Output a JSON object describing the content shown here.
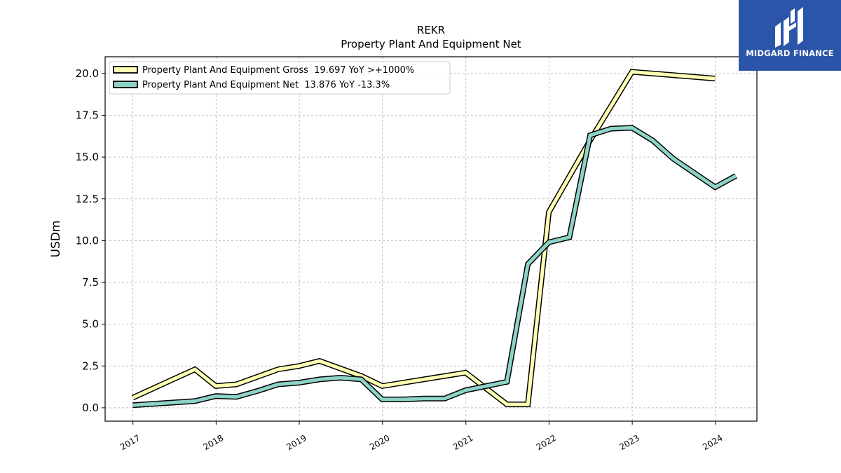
{
  "chart_data": {
    "type": "line",
    "title": "REKR",
    "subtitle": "Property Plant And Equipment Net",
    "ylabel": "USDm",
    "xlabel": "",
    "xlim": [
      "2016-09-01",
      "2024-07-01"
    ],
    "ylim": [
      -0.8,
      21.0
    ],
    "yticks": [
      0.0,
      2.5,
      5.0,
      7.5,
      10.0,
      12.5,
      15.0,
      17.5,
      20.0
    ],
    "ytick_labels": [
      "0.0",
      "2.5",
      "5.0",
      "7.5",
      "10.0",
      "12.5",
      "15.0",
      "17.5",
      "20.0"
    ],
    "xticks": [
      "2017-01-01",
      "2018-01-01",
      "2019-01-01",
      "2020-01-01",
      "2021-01-01",
      "2022-01-01",
      "2023-01-01",
      "2024-01-01"
    ],
    "xtick_labels": [
      "2017",
      "2018",
      "2019",
      "2020",
      "2021",
      "2022",
      "2023",
      "2024"
    ],
    "grid": true,
    "legend_position": "top-left",
    "series": [
      {
        "name": "Property Plant And Equipment Gross  19.697 YoY >+1000%",
        "color": "#ffffb3",
        "points": [
          [
            "2016-12-31",
            0.6
          ],
          [
            "2017-09-30",
            2.3
          ],
          [
            "2017-12-31",
            1.3
          ],
          [
            "2018-03-31",
            1.4
          ],
          [
            "2018-09-30",
            2.3
          ],
          [
            "2018-12-31",
            2.5
          ],
          [
            "2019-03-31",
            2.8
          ],
          [
            "2019-09-30",
            1.9
          ],
          [
            "2019-12-31",
            1.3
          ],
          [
            "2020-12-31",
            2.1
          ],
          [
            "2021-06-30",
            0.2
          ],
          [
            "2021-09-30",
            0.2
          ],
          [
            "2021-12-31",
            11.7
          ],
          [
            "2022-06-30",
            16.0
          ],
          [
            "2022-12-31",
            20.1
          ],
          [
            "2023-12-31",
            19.697
          ]
        ]
      },
      {
        "name": "Property Plant And Equipment Net  13.876 YoY -13.3%",
        "color": "#8dd3c7",
        "points": [
          [
            "2016-12-31",
            0.15
          ],
          [
            "2017-09-30",
            0.4
          ],
          [
            "2017-12-31",
            0.7
          ],
          [
            "2018-03-31",
            0.65
          ],
          [
            "2018-06-30",
            1.0
          ],
          [
            "2018-09-30",
            1.4
          ],
          [
            "2018-12-31",
            1.5
          ],
          [
            "2019-03-31",
            1.7
          ],
          [
            "2019-06-30",
            1.8
          ],
          [
            "2019-09-30",
            1.7
          ],
          [
            "2019-12-31",
            0.5
          ],
          [
            "2020-03-31",
            0.5
          ],
          [
            "2020-06-30",
            0.55
          ],
          [
            "2020-09-30",
            0.55
          ],
          [
            "2020-12-31",
            1.05
          ],
          [
            "2021-06-30",
            1.55
          ],
          [
            "2021-09-30",
            8.6
          ],
          [
            "2021-12-31",
            9.9
          ],
          [
            "2022-03-31",
            10.2
          ],
          [
            "2022-06-30",
            16.3
          ],
          [
            "2022-09-30",
            16.7
          ],
          [
            "2022-12-31",
            16.75
          ],
          [
            "2023-03-31",
            16.0
          ],
          [
            "2023-06-30",
            14.9
          ],
          [
            "2023-12-31",
            13.2
          ],
          [
            "2024-03-31",
            13.876
          ]
        ]
      }
    ]
  },
  "logo": {
    "text": "MIDGARD FINANCE",
    "icon": "midgard-logo-icon",
    "background": "#2b55a8"
  }
}
